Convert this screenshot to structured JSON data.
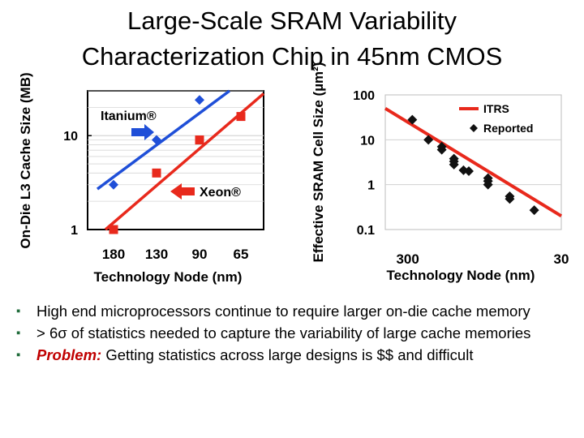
{
  "title_line1": "Large-Scale SRAM Variability",
  "title_line2": "Characterization Chip in 45nm CMOS",
  "bullets": [
    {
      "text": "High end microprocessors continue to require larger on-die cache memory"
    },
    {
      "text": "> 6σ of statistics needed to capture the variability of large cache memories"
    },
    {
      "label": "Problem:",
      "text": "Getting statistics across large designs is $$ and difficult"
    }
  ],
  "colors": {
    "itanium": "#1f4fd8",
    "xeon": "#e8291c",
    "itrs": "#e8291c",
    "reported": "#111111",
    "bullet": "#1f6b3a"
  },
  "chart_data": [
    {
      "type": "line",
      "title": "",
      "xlabel": "Technology Node (nm)",
      "ylabel": "On-Die L3 Cache Size (MB)",
      "categories": [
        "180",
        "130",
        "90",
        "65"
      ],
      "y_scale": "log",
      "ylim": [
        1,
        30
      ],
      "y_ticks": [
        "1",
        "10"
      ],
      "series": [
        {
          "name": "Itanium®",
          "color": "#1f4fd8",
          "marker": "diamond",
          "values": [
            3,
            9,
            24,
            null
          ],
          "trend": [
            2.7,
            30
          ]
        },
        {
          "name": "Xeon®",
          "color": "#e8291c",
          "marker": "square",
          "values": [
            1,
            4,
            9,
            16
          ],
          "trend": [
            1,
            28
          ]
        }
      ]
    },
    {
      "type": "scatter",
      "title": "",
      "xlabel": "Technology Node (nm)",
      "ylabel": "Effective SRAM Cell Size (µm²)",
      "x_scale": "log-reversed",
      "xlim": [
        420,
        30
      ],
      "x_ticks": [
        "300",
        "30"
      ],
      "y_scale": "log",
      "ylim": [
        0.1,
        100
      ],
      "y_ticks": [
        "100",
        "10",
        "1",
        "0.1"
      ],
      "legend": "top-right",
      "series": [
        {
          "name": "ITRS",
          "color": "#e8291c",
          "kind": "line",
          "points": [
            [
              420,
              50
            ],
            [
              30,
              0.2
            ]
          ]
        },
        {
          "name": "Reported",
          "color": "#111111",
          "kind": "diamond",
          "points": [
            [
              280,
              28
            ],
            [
              220,
              10
            ],
            [
              180,
              7
            ],
            [
              180,
              6
            ],
            [
              150,
              3.8
            ],
            [
              150,
              3.3
            ],
            [
              150,
              2.8
            ],
            [
              130,
              2.1
            ],
            [
              120,
              2
            ],
            [
              90,
              1.4
            ],
            [
              90,
              1.2
            ],
            [
              90,
              1.0
            ],
            [
              65,
              0.55
            ],
            [
              65,
              0.48
            ],
            [
              45,
              0.27
            ]
          ]
        }
      ]
    }
  ]
}
